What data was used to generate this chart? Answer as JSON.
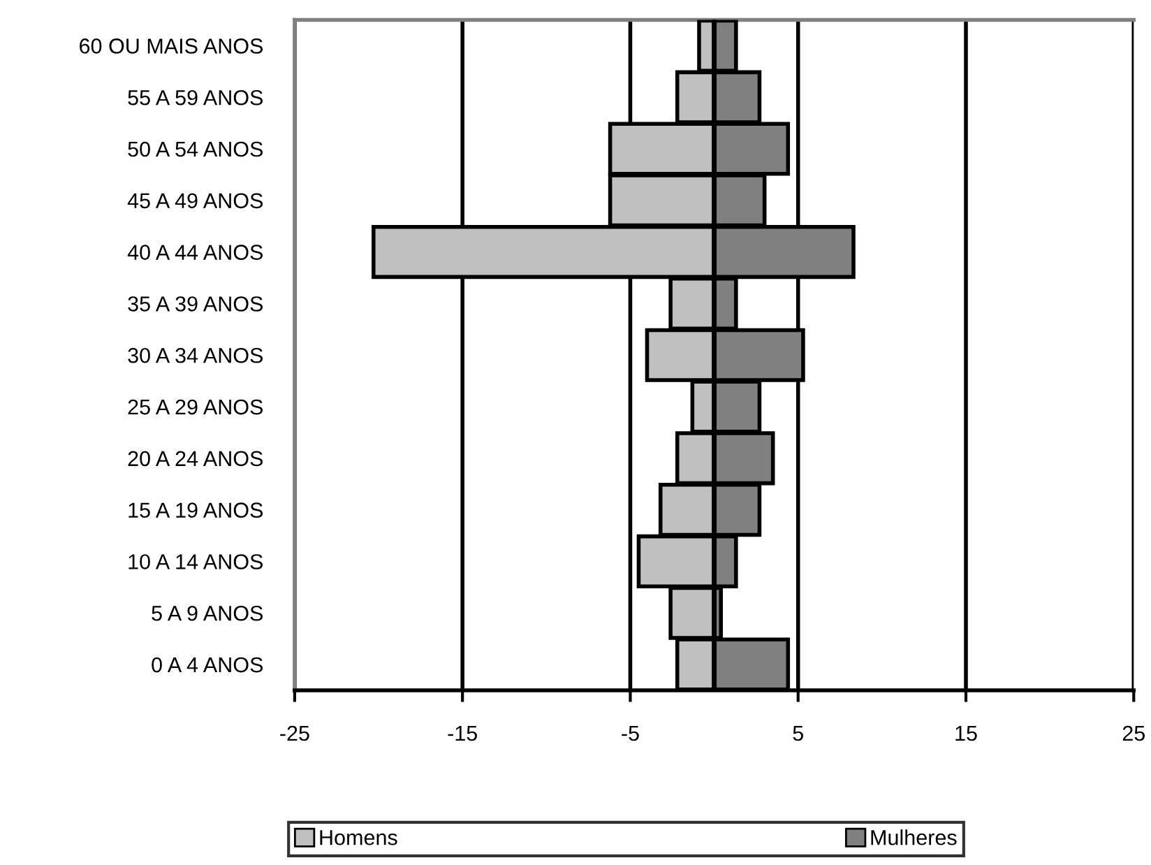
{
  "chart_data": {
    "type": "bar",
    "orientation": "horizontal",
    "categories": [
      "60 OU MAIS ANOS",
      "55 A 59 ANOS",
      "50 A 54 ANOS",
      "45 A 49 ANOS",
      "40 A 44 ANOS",
      "35 A 39 ANOS",
      "30 A 34 ANOS",
      "25 A 29 ANOS",
      "20 A 24 ANOS",
      "15 A 19 ANOS",
      "10 A 14 ANOS",
      "5 A 9 ANOS",
      "0 A 4 ANOS"
    ],
    "series": [
      {
        "name": "Homens",
        "color": "#c0c0c0",
        "values": [
          -0.9,
          -2.2,
          -6.2,
          -6.2,
          -20.3,
          -2.6,
          -4.0,
          -1.3,
          -2.2,
          -3.2,
          -4.5,
          -2.6,
          -2.2
        ]
      },
      {
        "name": "Mulheres",
        "color": "#808080",
        "values": [
          1.3,
          2.7,
          4.4,
          3.0,
          8.3,
          1.3,
          5.3,
          2.7,
          3.5,
          2.7,
          1.3,
          0.4,
          4.4
        ]
      }
    ],
    "stacked": true,
    "xlim": [
      -25,
      25
    ],
    "xticks": [
      -25,
      -15,
      -5,
      5,
      15,
      25
    ],
    "grid": "x",
    "legend": "bottom"
  }
}
